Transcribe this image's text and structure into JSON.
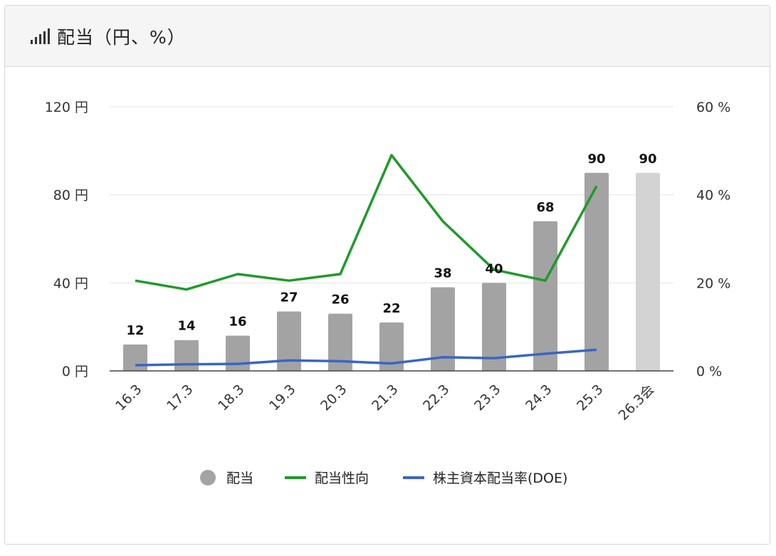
{
  "header": {
    "title": "配当（円、%）",
    "icon": "signal-bars-icon"
  },
  "chart_data": {
    "type": "bar",
    "categories": [
      "16.3",
      "17.3",
      "18.3",
      "19.3",
      "20.3",
      "21.3",
      "22.3",
      "23.3",
      "24.3",
      "25.3",
      "26.3会"
    ],
    "series": [
      {
        "name": "配当",
        "type": "bar",
        "axis": "left",
        "color": "#a3a3a3",
        "forecast_color": "#d3d3d3",
        "values": [
          12,
          14,
          16,
          27,
          26,
          22,
          38,
          40,
          68,
          90,
          90
        ],
        "data_labels": [
          "12",
          "14",
          "16",
          "27",
          "26",
          "22",
          "38",
          "40",
          "68",
          "90",
          "90"
        ]
      },
      {
        "name": "配当性向",
        "type": "line",
        "axis": "right",
        "color": "#1f9a2a",
        "values": [
          20.5,
          18.5,
          22,
          20.5,
          22,
          49,
          34,
          23,
          20.5,
          42,
          null
        ]
      },
      {
        "name": "株主資本配当率(DOE)",
        "type": "line",
        "axis": "right",
        "color": "#3a66c4",
        "values": [
          1.3,
          1.5,
          1.6,
          2.4,
          2.2,
          1.7,
          3.1,
          2.9,
          3.9,
          4.8,
          null
        ]
      }
    ],
    "y_left": {
      "ylim": [
        0,
        120
      ],
      "ticks": [
        0,
        40,
        80,
        120
      ],
      "tick_labels": [
        "0 円",
        "40 円",
        "80 円",
        "120 円"
      ]
    },
    "y_right": {
      "ylim": [
        0,
        60
      ],
      "ticks": [
        0,
        20,
        40,
        60
      ],
      "tick_labels": [
        "0 %",
        "20 %",
        "40 %",
        "60 %"
      ]
    },
    "grid": true,
    "legend": "bottom",
    "legend_items": [
      {
        "label": "配当",
        "marker": "circle",
        "color": "#a3a3a3"
      },
      {
        "label": "配当性向",
        "marker": "line",
        "color": "#1f9a2a"
      },
      {
        "label": "株主資本配当率(DOE)",
        "marker": "line",
        "color": "#3a66c4"
      }
    ]
  }
}
